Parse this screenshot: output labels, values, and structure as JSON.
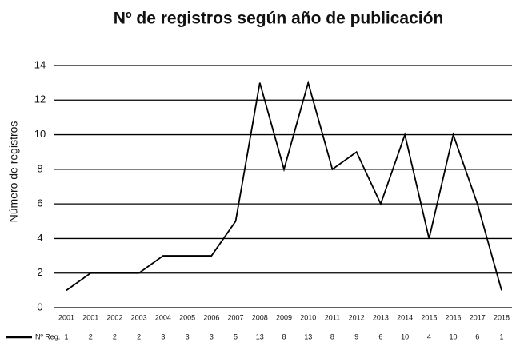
{
  "chart_data": {
    "type": "line",
    "title": "Nº de registros según año de publicación",
    "y_label": "Número de registros",
    "categories": [
      "2001",
      "2001",
      "2002",
      "2003",
      "2004",
      "2005",
      "2006",
      "2007",
      "2008",
      "2009",
      "2010",
      "2011",
      "2012",
      "2013",
      "2014",
      "2015",
      "2016",
      "2017",
      "2018"
    ],
    "series": [
      {
        "name": "Nº Reg.",
        "color": "#000000",
        "values": [
          1,
          2,
          2,
          2,
          3,
          3,
          3,
          5,
          13,
          8,
          13,
          8,
          9,
          6,
          10,
          4,
          10,
          6,
          1
        ]
      }
    ],
    "ylim": [
      0,
      14
    ],
    "yticks": [
      0,
      2,
      4,
      6,
      8,
      10,
      12,
      14
    ],
    "grid": true,
    "data_table": true
  }
}
